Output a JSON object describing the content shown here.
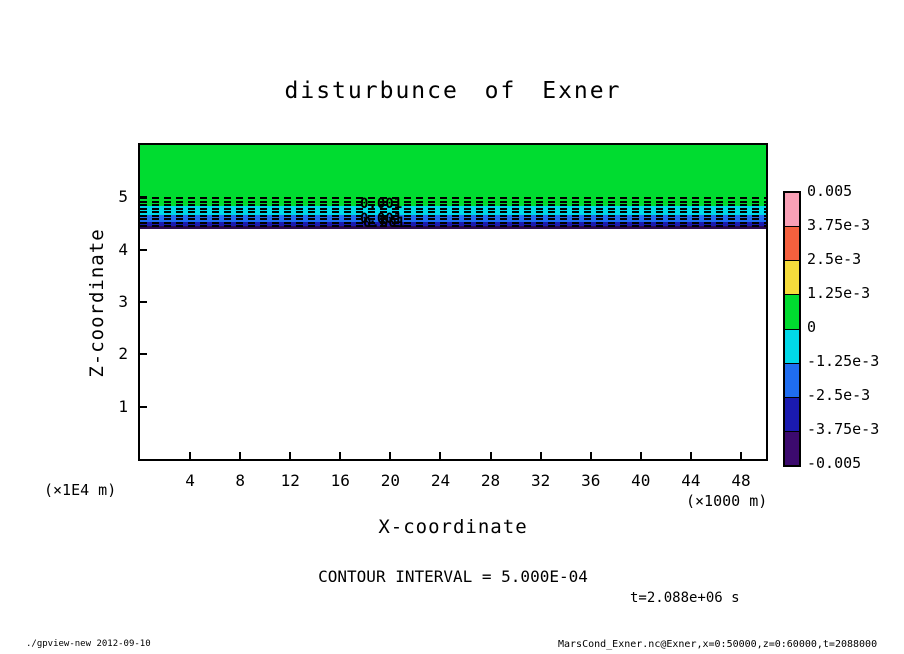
{
  "title": "disturbunce of Exner",
  "axes": {
    "x_label": "X-coordinate",
    "x_unit": "(×1000 m)",
    "x_ticks": [
      "4",
      "8",
      "12",
      "16",
      "20",
      "24",
      "28",
      "32",
      "36",
      "40",
      "44",
      "48"
    ],
    "y_label": "Z-coordinate",
    "y_unit": "(×1E4 m)",
    "y_ticks": [
      "5",
      "4",
      "3",
      "2",
      "1"
    ]
  },
  "plot": {
    "contour_labels": [
      "0.001",
      "0.001",
      "0.001"
    ],
    "band_colors": {
      "green": "#00dc30",
      "cyan": "#00d8e8",
      "blue": "#1f6df0",
      "navy": "#1a1ab0",
      "darkest": "#2a0a50"
    }
  },
  "colorbar": {
    "labels": [
      "0.005",
      "3.75e-3",
      "2.5e-3",
      "1.25e-3",
      "0",
      "-1.25e-3",
      "-2.5e-3",
      "-3.75e-3",
      "-0.005"
    ],
    "colors": [
      "#f9a0b6",
      "#f4603e",
      "#f5dc3c",
      "#00dc30",
      "#00d8e8",
      "#1f6df0",
      "#1a1ab0",
      "#3c0a6e"
    ]
  },
  "annotations": {
    "contour_interval": "CONTOUR INTERVAL = 5.000E-04",
    "time": "t=2.088e+06 s"
  },
  "footer": {
    "left": "./gpview-new  2012-09-10",
    "right": "MarsCond_Exner.nc@Exner,x=0:50000,z=0:60000,t=2088000"
  },
  "chart_data": {
    "type": "heatmap",
    "title": "disturbunce of Exner",
    "xlabel": "X-coordinate (×1000 m)",
    "ylabel": "Z-coordinate (×1E4 m)",
    "xlim": [
      0,
      50
    ],
    "ylim": [
      0,
      6
    ],
    "x_ticks": [
      4,
      8,
      12,
      16,
      20,
      24,
      28,
      32,
      36,
      40,
      44,
      48
    ],
    "y_ticks": [
      1,
      2,
      3,
      4,
      5
    ],
    "contour_interval": 0.0005,
    "tone_levels": [
      -0.005,
      -0.00375,
      -0.0025,
      -0.00125,
      0,
      0.00125,
      0.0025,
      0.00375,
      0.005
    ],
    "contour_label_values": [
      0.001
    ],
    "time_seconds": 2088000,
    "grid": false,
    "legend_position": "right-colorbar",
    "field_description": "Exner function disturbance; horizontally uniform layered structure near z=4.5e4 m, near-zero elsewhere",
    "layers": [
      {
        "z_from": 4.75,
        "z_to": 6.0,
        "value_band": [
          0,
          0.00125
        ],
        "tone": "green"
      },
      {
        "z_from": 4.62,
        "z_to": 4.75,
        "value_band": [
          -0.00125,
          0
        ],
        "tone": "cyan"
      },
      {
        "z_from": 4.52,
        "z_to": 4.62,
        "value_band": [
          -0.0025,
          -0.00125
        ],
        "tone": "blue"
      },
      {
        "z_from": 4.45,
        "z_to": 4.52,
        "value_band": [
          -0.005,
          -0.0025
        ],
        "tone": "dark blue"
      },
      {
        "z_from": 0,
        "z_to": 4.45,
        "value_band": [
          0,
          0
        ],
        "tone": "white"
      }
    ]
  }
}
